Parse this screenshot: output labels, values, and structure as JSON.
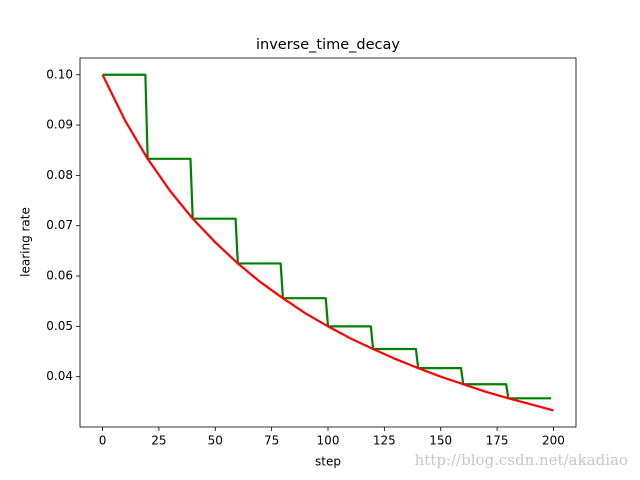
{
  "chart_data": {
    "type": "line",
    "title": "inverse_time_decay",
    "xlabel": "step",
    "ylabel": "learing rate",
    "watermark": "http://blog.csdn.net/akadiao",
    "series": [
      {
        "color": "#008000",
        "x": [
          0,
          19,
          20,
          39,
          40,
          59,
          60,
          79,
          80,
          99,
          100,
          119,
          120,
          139,
          140,
          159,
          160,
          179,
          180,
          199
        ],
        "values": [
          0.1,
          0.1,
          0.0833,
          0.0833,
          0.0714,
          0.0714,
          0.0625,
          0.0625,
          0.0556,
          0.0556,
          0.05,
          0.05,
          0.0455,
          0.0455,
          0.0417,
          0.0417,
          0.0385,
          0.0385,
          0.0357,
          0.0357
        ]
      },
      {
        "color": "#ff0000",
        "x": [
          0,
          10,
          20,
          30,
          40,
          50,
          60,
          70,
          80,
          90,
          100,
          110,
          120,
          130,
          140,
          150,
          160,
          170,
          180,
          190,
          200
        ],
        "values": [
          0.1,
          0.0909,
          0.0833,
          0.0769,
          0.0714,
          0.0667,
          0.0625,
          0.0588,
          0.0556,
          0.0526,
          0.05,
          0.0476,
          0.0455,
          0.0435,
          0.0417,
          0.04,
          0.0385,
          0.037,
          0.0357,
          0.0345,
          0.0333
        ]
      }
    ],
    "xlim": [
      -10,
      210
    ],
    "ylim": [
      0.03,
      0.10333
    ],
    "xticks": [
      0,
      25,
      50,
      75,
      100,
      125,
      150,
      175,
      200
    ],
    "yticks": [
      0.04,
      0.05,
      0.06,
      0.07,
      0.08,
      0.09,
      {
        "value": 0.1,
        "label": "0.10"
      }
    ]
  }
}
